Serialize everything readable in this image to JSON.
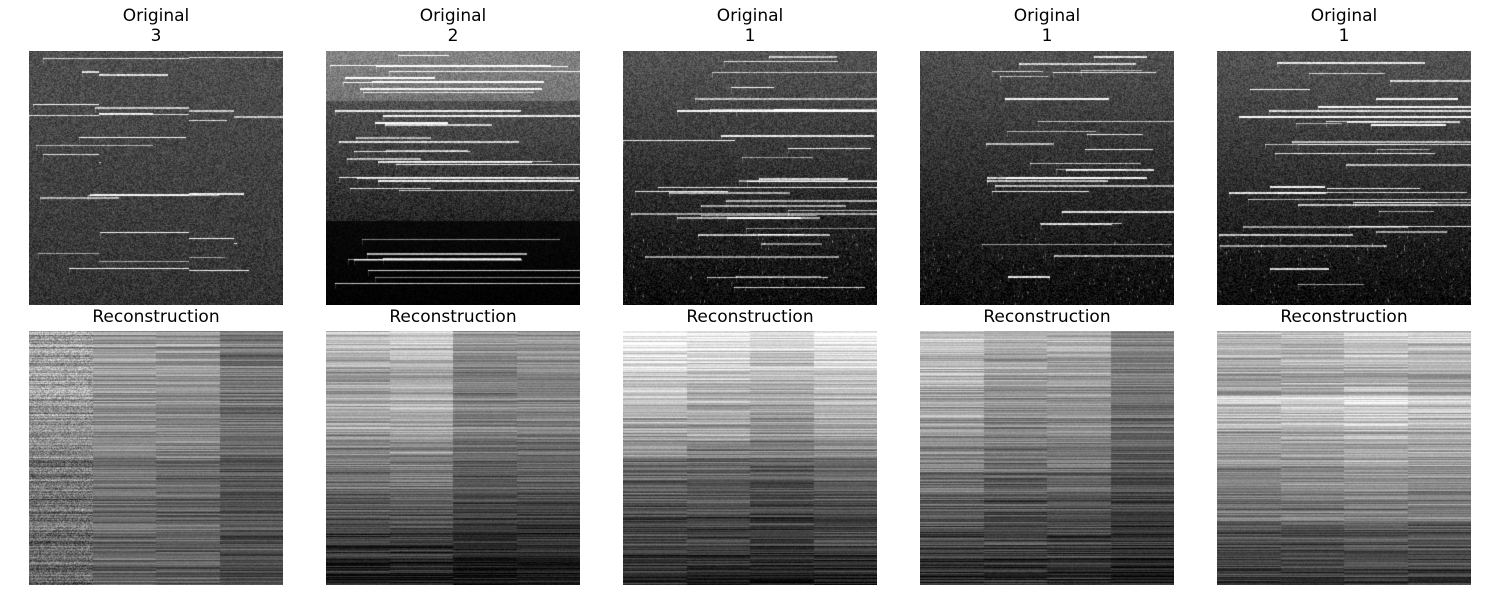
{
  "figure": {
    "rows": [
      {
        "row": "original",
        "panels": [
          {
            "title": "Original",
            "label": "3",
            "style": {
              "bright_low": false,
              "variant": "glide"
            }
          },
          {
            "title": "Original",
            "label": "2",
            "style": {
              "variant": "dense-top"
            }
          },
          {
            "title": "Original",
            "label": "1",
            "style": {
              "variant": "piano"
            }
          },
          {
            "title": "Original",
            "label": "1",
            "style": {
              "variant": "sparse-left"
            }
          },
          {
            "title": "Original",
            "label": "1",
            "style": {
              "variant": "piano"
            }
          }
        ]
      },
      {
        "row": "reconstruction",
        "panels": [
          {
            "title": "Reconstruction",
            "label": ""
          },
          {
            "title": "Reconstruction",
            "label": ""
          },
          {
            "title": "Reconstruction",
            "label": ""
          },
          {
            "title": "Reconstruction",
            "label": ""
          },
          {
            "title": "Reconstruction",
            "label": ""
          }
        ]
      }
    ],
    "colormap": "grayscale"
  }
}
